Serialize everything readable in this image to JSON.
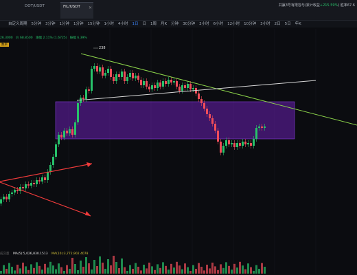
{
  "tabs": [
    {
      "name": "",
      "price": "",
      "active": false
    },
    {
      "name": "DOT/USDT",
      "price": "",
      "active": false
    },
    {
      "name": "FIL/USDT",
      "price": "",
      "active": true
    }
  ],
  "right_info": {
    "prefix": "共赢3号有限容与(累计收益",
    "gain": "+215.59%",
    "suffix": "胜率67.6"
  },
  "toolbar": [
    "",
    "自定义周期",
    "5分钟",
    "3分钟",
    "1分钟",
    "1分钟",
    "15分钟",
    "1小时",
    "4小时",
    "1日",
    "日",
    "1周",
    "月K",
    "分钟",
    "30分钟",
    "2小时",
    "6小时",
    "12小时",
    "10分钟",
    "3小时",
    "2日",
    "5日",
    "年K"
  ],
  "toolbar_active_index": 9,
  "indicators": [
    "26.3000",
    "价 68.8500",
    "涨幅 2.11% (1.6725)",
    "振幅 6.39%"
  ],
  "side_label": "数率",
  "volume_legend": {
    "label": "成交量",
    "ma5": "MA(5):5,026,830.1513",
    "ma10": "MA(10):3,772,902.4078"
  },
  "annotation": "238",
  "colors": {
    "up": "#27c26a",
    "down": "#ef4d5a",
    "zone": "#6a1fb0",
    "accent": "#3b82f6",
    "trend_green": "#8bd24a"
  }
}
